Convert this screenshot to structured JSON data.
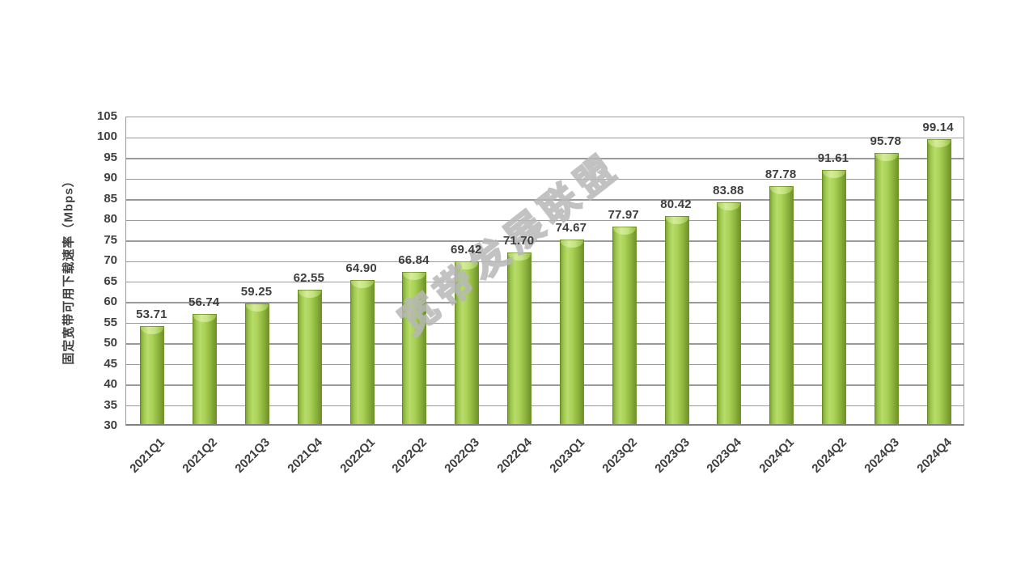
{
  "watermark": {
    "text": "宽带发展联盟"
  },
  "colors": {
    "grid": "#9a9a9a",
    "axis": "#808080",
    "label": "#3f3f3f",
    "watermark": "#b8b8b8",
    "bar_light": "#b9dc6b",
    "bar_dark": "#6f9329",
    "bar_cap": "#d6eb9b"
  },
  "chart_data": {
    "type": "bar",
    "categories": [
      "2021Q1",
      "2021Q2",
      "2021Q3",
      "2021Q4",
      "2022Q1",
      "2022Q2",
      "2022Q3",
      "2022Q4",
      "2023Q1",
      "2023Q2",
      "2023Q3",
      "2023Q4",
      "2024Q1",
      "2024Q2",
      "2024Q3",
      "2024Q4"
    ],
    "values": [
      53.71,
      56.74,
      59.25,
      62.55,
      64.9,
      66.84,
      69.42,
      71.7,
      74.67,
      77.97,
      80.42,
      83.88,
      87.78,
      91.61,
      95.78,
      99.14
    ],
    "value_labels": [
      "53.71",
      "56.74",
      "59.25",
      "62.55",
      "64.90",
      "66.84",
      "69.42",
      "71.70",
      "74.67",
      "77.97",
      "80.42",
      "83.88",
      "87.78",
      "91.61",
      "95.78",
      "99.14"
    ],
    "title": "",
    "xlabel": "",
    "ylabel": "固定宽带可用下载速率（Mbps）",
    "ylim": [
      30,
      105
    ],
    "ytick_step": 5,
    "grid": true,
    "legend": false,
    "bar_style": "3d-gradient-green",
    "x_label_rotation_deg": -45
  }
}
